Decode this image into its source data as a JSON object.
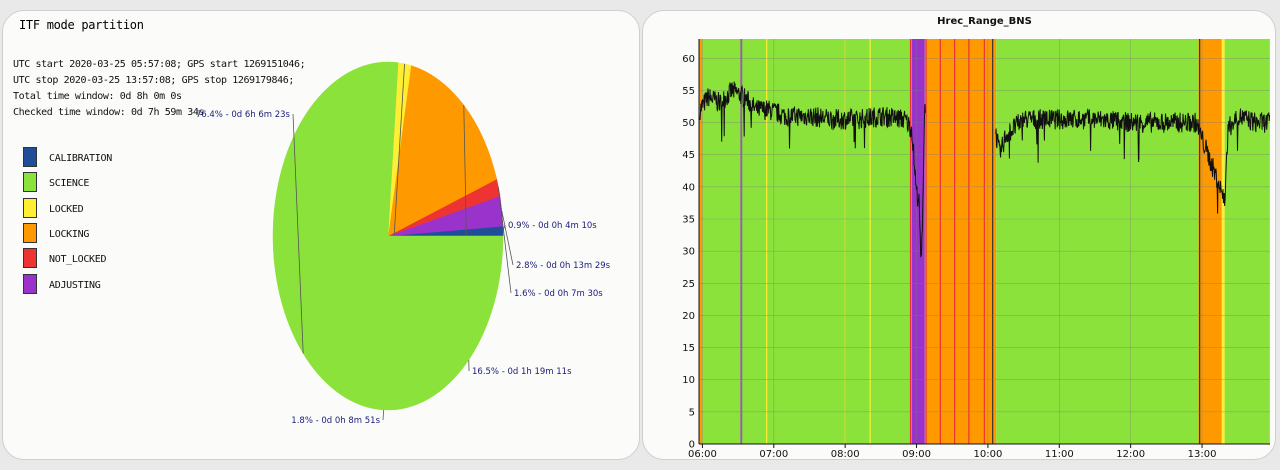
{
  "pie_panel": {
    "title": "ITF mode partition",
    "info_lines": [
      "UTC start 2020-03-25 05:57:08; GPS start 1269151046;",
      "UTC stop 2020-03-25 13:57:08; GPS stop 1269179846;",
      "Total time window: 0d 8h 0m 0s",
      "Checked time window: 0d 7h 59m 34s"
    ]
  },
  "line_panel": {
    "title": "Hrec_Range_BNS"
  },
  "colors": {
    "CALIBRATION": "#1f4e99",
    "SCIENCE": "#8be23a",
    "LOCKED": "#ffee33",
    "LOCKING": "#ff9900",
    "NOT_LOCKED": "#ee3333",
    "ADJUSTING": "#9933cc"
  },
  "chart_data": [
    {
      "type": "pie",
      "title": "ITF mode partition",
      "legend": [
        "CALIBRATION",
        "SCIENCE",
        "LOCKED",
        "LOCKING",
        "NOT_LOCKED",
        "ADJUSTING"
      ],
      "slices": [
        {
          "name": "CALIBRATION",
          "value": 0.9,
          "label": "0.9% - 0d 0h 4m 10s"
        },
        {
          "name": "ADJUSTING",
          "value": 2.8,
          "label": "2.8% - 0d 0h 13m 29s"
        },
        {
          "name": "NOT_LOCKED",
          "value": 1.6,
          "label": "1.6% - 0d 0h 7m 30s"
        },
        {
          "name": "LOCKING",
          "value": 16.5,
          "label": "16.5% - 0d 1h 19m 11s"
        },
        {
          "name": "LOCKED",
          "value": 1.8,
          "label": "1.8% - 0d 0h 8m 51s"
        },
        {
          "name": "SCIENCE",
          "value": 76.4,
          "label": "76.4% - 0d 6h 6m 23s"
        }
      ]
    },
    {
      "type": "line",
      "title": "Hrec_Range_BNS",
      "xlim": [
        "05:57:08",
        "13:57:08"
      ],
      "ylim": [
        0,
        63
      ],
      "x_tick_labels": [
        "06:00",
        "07:00",
        "08:00",
        "09:00",
        "10:00",
        "11:00",
        "12:00",
        "13:00"
      ],
      "y_tick_labels": [
        "0",
        "5",
        "10",
        "15",
        "20",
        "25",
        "30",
        "35",
        "40",
        "45",
        "50",
        "55",
        "60"
      ],
      "grid": true,
      "background_mode_bands": [
        {
          "start": "05:57",
          "end": "06:00",
          "mode": "LOCKING"
        },
        {
          "start": "06:00",
          "end": "06:32",
          "mode": "SCIENCE"
        },
        {
          "start": "06:32",
          "end": "06:33",
          "mode": "ADJUSTING"
        },
        {
          "start": "06:33",
          "end": "08:54",
          "mode": "SCIENCE"
        },
        {
          "start": "08:54",
          "end": "08:56",
          "mode": "LOCKING"
        },
        {
          "start": "08:56",
          "end": "09:07",
          "mode": "ADJUSTING"
        },
        {
          "start": "09:07",
          "end": "10:07",
          "mode": "LOCKING"
        },
        {
          "start": "10:07",
          "end": "12:57",
          "mode": "SCIENCE"
        },
        {
          "start": "12:57",
          "end": "13:17",
          "mode": "LOCKING"
        },
        {
          "start": "13:17",
          "end": "13:19",
          "mode": "LOCKED"
        },
        {
          "start": "13:19",
          "end": "13:57",
          "mode": "SCIENCE"
        }
      ],
      "series": [
        {
          "x": [
            "05:58",
            "06:05",
            "06:15",
            "06:25",
            "06:35",
            "06:45",
            "06:55",
            "07:10",
            "07:30",
            "07:50",
            "08:10",
            "08:30",
            "08:50",
            "08:56",
            "09:00",
            "09:02",
            "09:04",
            "09:07",
            "10:07",
            "10:10",
            "10:15",
            "10:30",
            "11:00",
            "11:30",
            "12:00",
            "12:30",
            "12:55",
            "13:19",
            "13:22",
            "13:30",
            "13:45",
            "13:57"
          ],
          "values": [
            52,
            54,
            53,
            55,
            54,
            52,
            52,
            51,
            51,
            50.5,
            50.5,
            51,
            50.5,
            49,
            39,
            38,
            27,
            53,
            48,
            45,
            48,
            50.5,
            50.5,
            50.5,
            50,
            50,
            50,
            38,
            49,
            51,
            50,
            50
          ]
        }
      ]
    }
  ]
}
